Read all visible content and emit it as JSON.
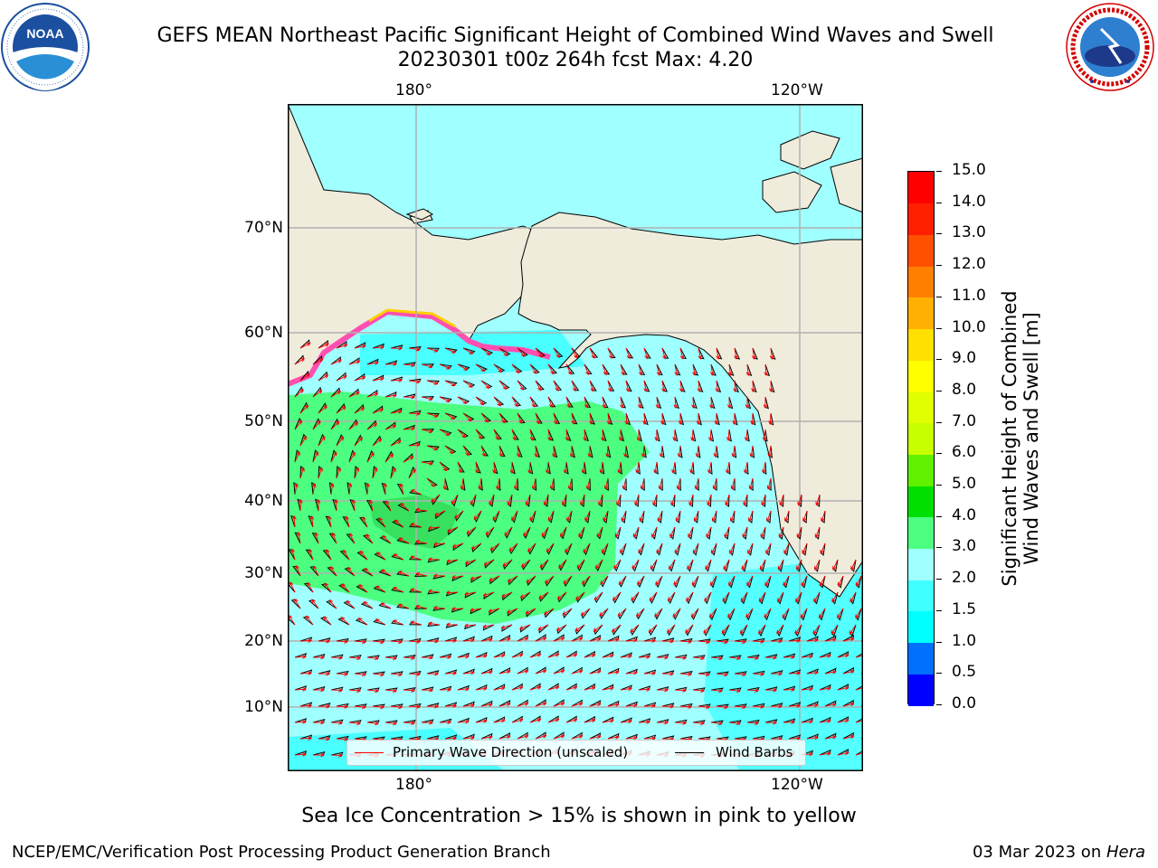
{
  "title_line1": "GEFS MEAN Northeast Pacific Significant Height of Combined Wind Waves and Swell",
  "title_line2": "20230301 t00z 264h fcst   Max: 4.20",
  "logos": {
    "left": {
      "icon": "noaa-logo",
      "ring_text": "NATIONAL OCEANIC AND ATMOSPHERIC ADMINISTRATION · U.S. DEPARTMENT OF COMMERCE",
      "center": "NOAA"
    },
    "right": {
      "icon": "nws-logo",
      "ring_text": "NATIONAL WEATHER SERVICE"
    }
  },
  "map": {
    "lon_labels_top": [
      "180°",
      "120°W"
    ],
    "lon_labels_bottom": [
      "180°",
      "120°W"
    ],
    "lat_labels": [
      "70°N",
      "60°N",
      "50°N",
      "40°N",
      "30°N",
      "20°N",
      "10°N"
    ],
    "colors": {
      "land": "#efecdc",
      "gridline": "#b0b0b0",
      "wind_barb": "#000000",
      "wave_dir": "#ff0000"
    },
    "legend": {
      "wave_label": "Primary Wave Direction (unscaled)",
      "wind_label": "Wind Barbs"
    }
  },
  "colorbar": {
    "title_line1": "Significant Height of Combined",
    "title_line2": "Wind Waves and Swell [m]",
    "ticks": [
      "0.0",
      "0.5",
      "1.0",
      "1.5",
      "2.0",
      "3.0",
      "4.0",
      "5.0",
      "6.0",
      "7.0",
      "8.0",
      "9.0",
      "10.0",
      "11.0",
      "12.0",
      "13.0",
      "14.0",
      "15.0"
    ],
    "colors": [
      "#0000ff",
      "#0070ff",
      "#00ffff",
      "#40ffff",
      "#a0ffff",
      "#4cff80",
      "#00e000",
      "#60f000",
      "#c8ff00",
      "#e0ff00",
      "#ffff00",
      "#ffe000",
      "#ffb000",
      "#ff8000",
      "#ff5000",
      "#ff2000",
      "#ff0000"
    ]
  },
  "ice_note": "Sea Ice Concentration > 15% is shown in pink to yellow",
  "footer_left": "NCEP/EMC/Verification Post Processing Product Generation Branch",
  "footer_right_date": "03 Mar 2023 on ",
  "footer_right_host": "Hera"
}
